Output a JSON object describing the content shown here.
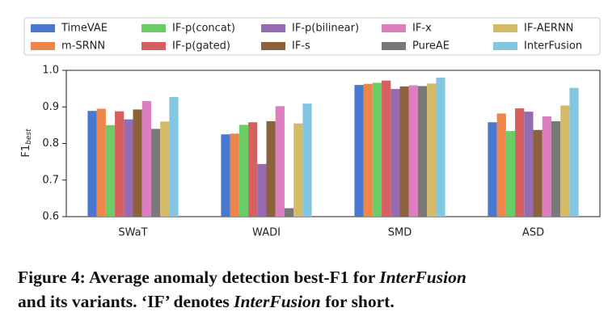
{
  "chart_data": {
    "type": "bar",
    "categories": [
      "SWaT",
      "WADI",
      "SMD",
      "ASD"
    ],
    "y_label": "F1",
    "y_label_sub": "best",
    "ylim": [
      0.6,
      1.0
    ],
    "yticks": [
      0.6,
      0.7,
      0.8,
      0.9,
      {
        "value": 1,
        "label": "1.0"
      }
    ],
    "series": [
      {
        "name": "TimeVAE",
        "color": "#4878d0",
        "values": [
          0.889,
          0.825,
          0.96,
          0.858
        ]
      },
      {
        "name": "m-SRNN",
        "color": "#ee854a",
        "values": [
          0.895,
          0.827,
          0.963,
          0.882
        ]
      },
      {
        "name": "IF-p(concat)",
        "color": "#6acc64",
        "values": [
          0.85,
          0.851,
          0.966,
          0.834
        ]
      },
      {
        "name": "IF-p(gated)",
        "color": "#d65f5f",
        "values": [
          0.888,
          0.858,
          0.972,
          0.896
        ]
      },
      {
        "name": "IF-p(bilinear)",
        "color": "#956cb4",
        "values": [
          0.866,
          0.744,
          0.949,
          0.887
        ]
      },
      {
        "name": "IF-s",
        "color": "#8c613c",
        "values": [
          0.893,
          0.861,
          0.956,
          0.837
        ]
      },
      {
        "name": "IF-x",
        "color": "#dc7ec0",
        "values": [
          0.916,
          0.902,
          0.959,
          0.874
        ]
      },
      {
        "name": "PureAE",
        "color": "#797979",
        "values": [
          0.84,
          0.623,
          0.957,
          0.861
        ]
      },
      {
        "name": "IF-AERNN",
        "color": "#d5bb67",
        "values": [
          0.86,
          0.855,
          0.964,
          0.904
        ]
      },
      {
        "name": "InterFusion",
        "color": "#82c6e2",
        "values": [
          0.927,
          0.909,
          0.98,
          0.952
        ]
      }
    ],
    "legend": "top",
    "caption_lines": [
      [
        {
          "text": "Figure 4: Average anomaly detection best-F1 for ",
          "italic": false
        },
        {
          "text": "InterFusion",
          "italic": true
        }
      ],
      [
        {
          "text": "and its variants. ‘IF’ denotes ",
          "italic": false
        },
        {
          "text": "InterFusion",
          "italic": true
        },
        {
          "text": " for short.",
          "italic": false
        }
      ]
    ]
  }
}
